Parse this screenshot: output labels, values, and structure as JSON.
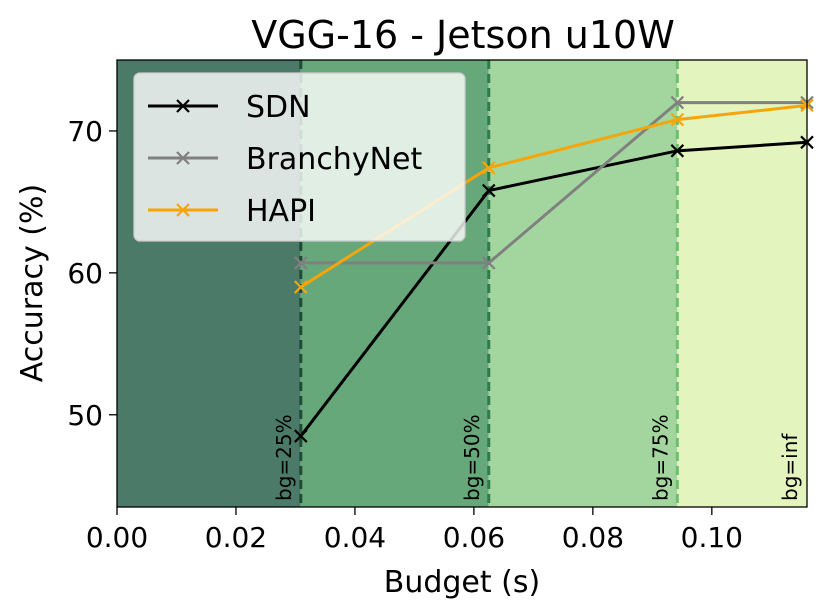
{
  "chart_data": {
    "type": "line",
    "title": "VGG-16 - Jetson u10W",
    "xlabel": "Budget (s)",
    "ylabel": "Accuracy (%)",
    "xlim": [
      0.0,
      0.116
    ],
    "ylim": [
      43.5,
      75.0
    ],
    "xticks": [
      {
        "value": 0.0,
        "label": "0.00"
      },
      {
        "value": 0.02,
        "label": "0.02"
      },
      {
        "value": 0.04,
        "label": "0.04"
      },
      {
        "value": 0.06,
        "label": "0.06"
      },
      {
        "value": 0.08,
        "label": "0.08"
      },
      {
        "value": 0.1,
        "label": "0.10"
      }
    ],
    "yticks": [
      {
        "value": 50,
        "label": "50"
      },
      {
        "value": 60,
        "label": "60"
      },
      {
        "value": 70,
        "label": "70"
      }
    ],
    "grid": false,
    "legend": "top-left",
    "bands": [
      {
        "label": "bg=25%",
        "from": 0.0,
        "to": 0.0309,
        "color": "#4b7a68",
        "line_color": "#1f4a36"
      },
      {
        "label": "bg=50%",
        "from": 0.0309,
        "to": 0.0625,
        "color": "#66a87a",
        "line_color": "#2e7a48"
      },
      {
        "label": "bg=75%",
        "from": 0.0625,
        "to": 0.0942,
        "color": "#a3d69e",
        "line_color": "#6cbf6e"
      },
      {
        "label": "bg=inf",
        "from": 0.0942,
        "to": 0.116,
        "color": "#e4f4be",
        "line_color": null
      }
    ],
    "x": [
      0.0309,
      0.0625,
      0.0942,
      0.116
    ],
    "series": [
      {
        "name": "SDN",
        "color": "#000000",
        "values": [
          48.5,
          65.8,
          68.6,
          69.2
        ]
      },
      {
        "name": "BranchyNet",
        "color": "#808080",
        "values": [
          60.7,
          60.7,
          72.0,
          72.0
        ]
      },
      {
        "name": "HAPI",
        "color": "#f5a50a",
        "values": [
          59.0,
          67.4,
          70.8,
          71.8
        ]
      }
    ]
  }
}
